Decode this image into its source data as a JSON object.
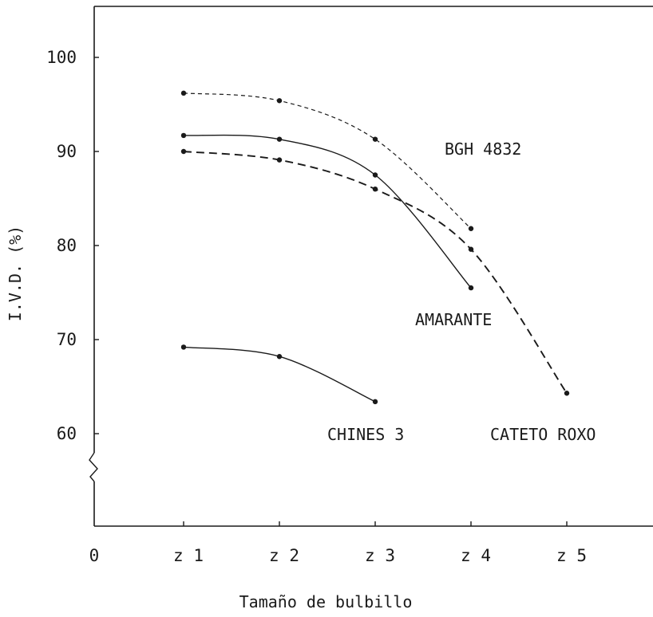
{
  "chart_data": {
    "type": "line",
    "title": "",
    "xlabel": "Tamaño de bulbillo",
    "ylabel": "I.V.D. (%)",
    "categories": [
      "0",
      "z 1",
      "z 2",
      "z 3",
      "z 4",
      "z 5"
    ],
    "y_ticks": [
      "60",
      "70",
      "80",
      "90",
      "100"
    ],
    "ylim": [
      50,
      105
    ],
    "y_axis_break": true,
    "grid": false,
    "legend": "none (series labelled directly on the plot)",
    "series": [
      {
        "name": "BGH 4832",
        "style": "dashed-fine",
        "x": [
          1,
          2,
          3,
          4
        ],
        "values": [
          96.2,
          95.4,
          91.3,
          81.8
        ]
      },
      {
        "name": "AMARANTE",
        "style": "solid",
        "x": [
          1,
          2,
          3,
          4
        ],
        "values": [
          91.7,
          91.3,
          87.5,
          75.5
        ]
      },
      {
        "name": "CATETO ROXO",
        "style": "dashed",
        "x": [
          1,
          2,
          3,
          4,
          5
        ],
        "values": [
          90.0,
          89.1,
          86.0,
          79.6,
          64.3
        ]
      },
      {
        "name": "CHINES 3",
        "style": "solid",
        "x": [
          1,
          2,
          3
        ],
        "values": [
          69.2,
          68.2,
          63.4
        ]
      }
    ]
  }
}
